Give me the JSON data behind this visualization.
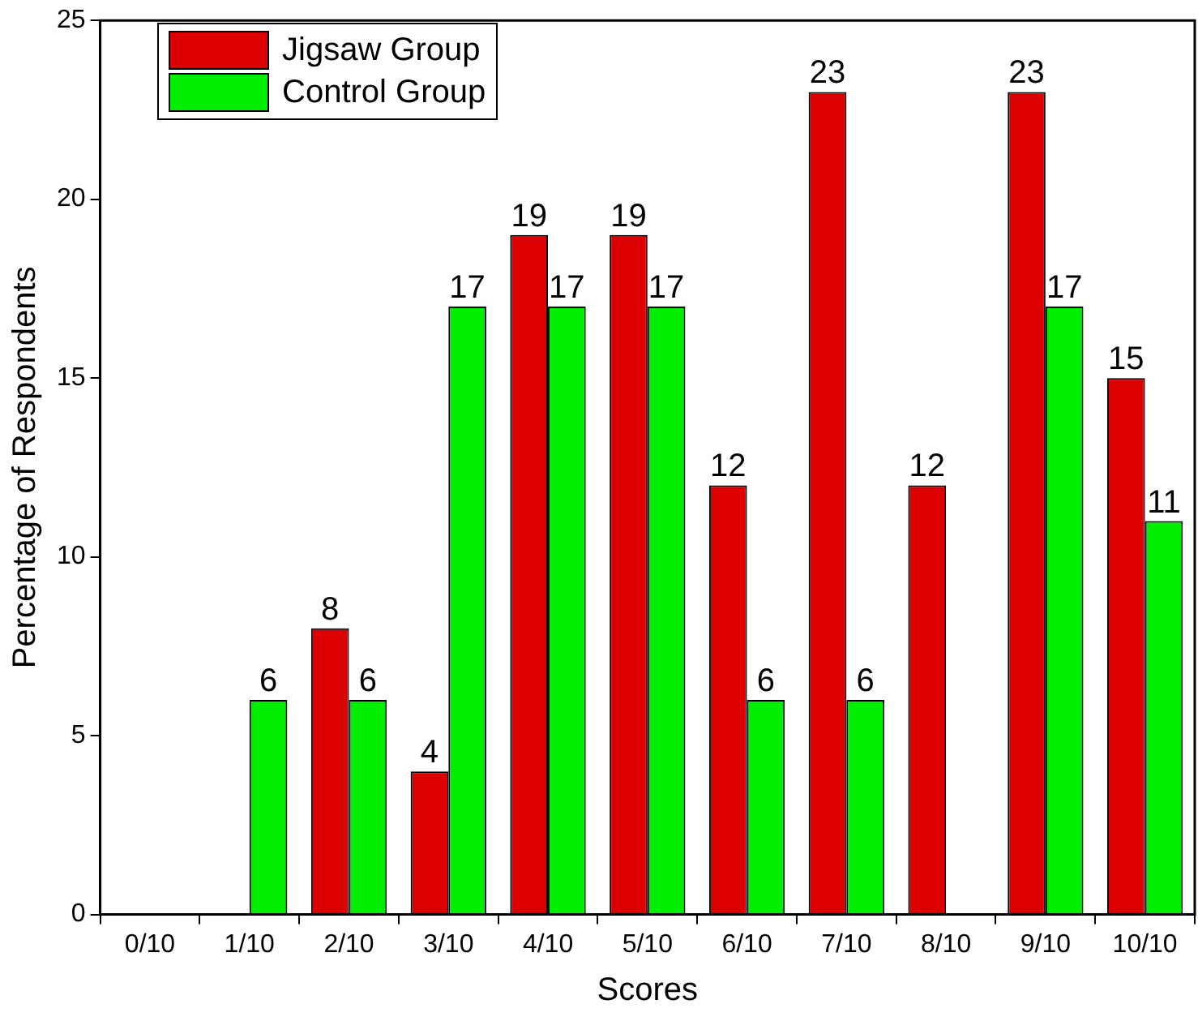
{
  "chart_data": {
    "type": "bar",
    "xlabel": "Scores",
    "ylabel": "Percentage of Respondents",
    "categories": [
      "0/10",
      "1/10",
      "2/10",
      "3/10",
      "4/10",
      "5/10",
      "6/10",
      "7/10",
      "8/10",
      "9/10",
      "10/10"
    ],
    "series": [
      {
        "name": "Jigsaw Group",
        "color": "#dd0000",
        "values": [
          0,
          0,
          8,
          4,
          19,
          19,
          12,
          23,
          12,
          23,
          15
        ],
        "value_labels": [
          null,
          null,
          "8",
          "4",
          "19",
          "19",
          "12",
          "23",
          "12",
          "23",
          "15"
        ]
      },
      {
        "name": "Control Group",
        "color": "#00ee00",
        "values": [
          0,
          6,
          6,
          17,
          17,
          17,
          6,
          6,
          0,
          17,
          11
        ],
        "value_labels": [
          null,
          "6",
          "6",
          "17",
          "17",
          "17",
          "6",
          "6",
          null,
          "17",
          "11"
        ]
      }
    ],
    "ylim": [
      0,
      25
    ],
    "yticks": [
      0,
      5,
      10,
      15,
      20,
      25
    ],
    "grid": false,
    "legend": "top left"
  }
}
